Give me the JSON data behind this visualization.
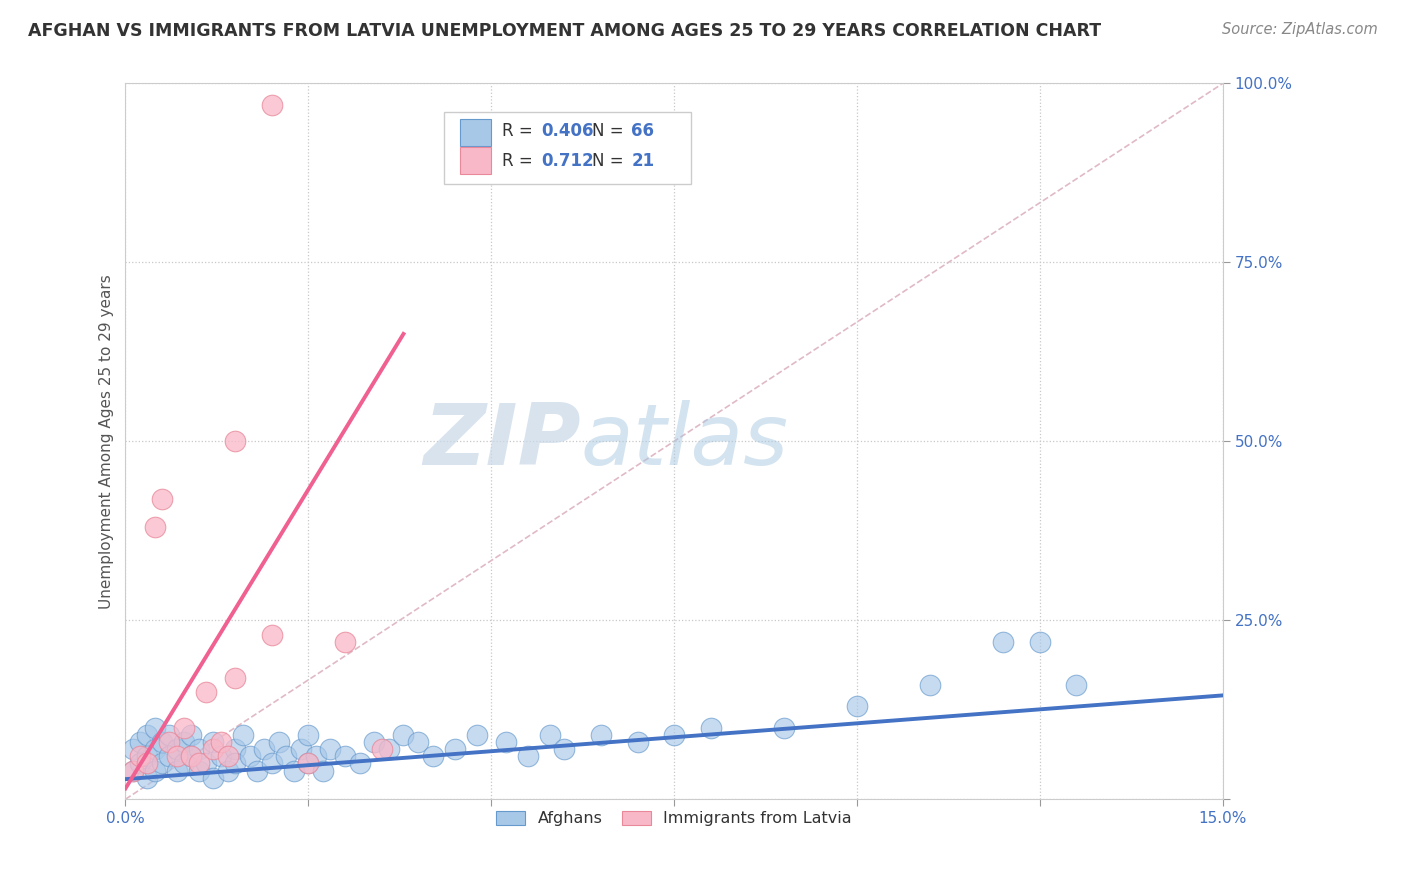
{
  "title": "AFGHAN VS IMMIGRANTS FROM LATVIA UNEMPLOYMENT AMONG AGES 25 TO 29 YEARS CORRELATION CHART",
  "source": "Source: ZipAtlas.com",
  "ylabel": "Unemployment Among Ages 25 to 29 years",
  "watermark_zip": "ZIP",
  "watermark_atlas": "atlas",
  "xlim": [
    0.0,
    0.15
  ],
  "ylim": [
    0.0,
    1.0
  ],
  "afghan_color": "#a8c8e8",
  "afghan_edge": "#6699cc",
  "latvia_color": "#f9b8c8",
  "latvia_edge": "#e88899",
  "afghan_R": 0.406,
  "afghan_N": 66,
  "latvia_R": 0.712,
  "latvia_N": 21,
  "blue_color": "#4472c4",
  "pink_color": "#f06090",
  "bg_color": "#ffffff",
  "afghan_line_x": [
    0.0,
    0.15
  ],
  "afghan_line_y": [
    0.028,
    0.145
  ],
  "latvia_line_x": [
    0.0,
    0.038
  ],
  "latvia_line_y": [
    0.015,
    0.65
  ],
  "diag_line_color": "#d8a8b8",
  "afghan_scatter_x": [
    0.001,
    0.001,
    0.002,
    0.002,
    0.003,
    0.003,
    0.003,
    0.004,
    0.004,
    0.004,
    0.005,
    0.005,
    0.006,
    0.006,
    0.007,
    0.007,
    0.008,
    0.008,
    0.009,
    0.009,
    0.01,
    0.01,
    0.011,
    0.012,
    0.012,
    0.013,
    0.014,
    0.015,
    0.015,
    0.016,
    0.017,
    0.018,
    0.019,
    0.02,
    0.021,
    0.022,
    0.023,
    0.024,
    0.025,
    0.025,
    0.026,
    0.027,
    0.028,
    0.03,
    0.032,
    0.034,
    0.036,
    0.038,
    0.04,
    0.042,
    0.045,
    0.048,
    0.052,
    0.055,
    0.058,
    0.06,
    0.065,
    0.07,
    0.075,
    0.08,
    0.09,
    0.1,
    0.11,
    0.12,
    0.125,
    0.13
  ],
  "afghan_scatter_y": [
    0.04,
    0.07,
    0.05,
    0.08,
    0.03,
    0.06,
    0.09,
    0.04,
    0.07,
    0.1,
    0.05,
    0.08,
    0.06,
    0.09,
    0.04,
    0.07,
    0.05,
    0.08,
    0.06,
    0.09,
    0.04,
    0.07,
    0.05,
    0.03,
    0.08,
    0.06,
    0.04,
    0.07,
    0.05,
    0.09,
    0.06,
    0.04,
    0.07,
    0.05,
    0.08,
    0.06,
    0.04,
    0.07,
    0.05,
    0.09,
    0.06,
    0.04,
    0.07,
    0.06,
    0.05,
    0.08,
    0.07,
    0.09,
    0.08,
    0.06,
    0.07,
    0.09,
    0.08,
    0.06,
    0.09,
    0.07,
    0.09,
    0.08,
    0.09,
    0.1,
    0.1,
    0.13,
    0.16,
    0.22,
    0.22,
    0.16
  ],
  "latvia_scatter_x": [
    0.001,
    0.002,
    0.003,
    0.004,
    0.005,
    0.006,
    0.007,
    0.008,
    0.009,
    0.01,
    0.011,
    0.012,
    0.013,
    0.014,
    0.015,
    0.02,
    0.025,
    0.03,
    0.035,
    0.015,
    0.02
  ],
  "latvia_scatter_y": [
    0.04,
    0.06,
    0.05,
    0.38,
    0.42,
    0.08,
    0.06,
    0.1,
    0.06,
    0.05,
    0.15,
    0.07,
    0.08,
    0.06,
    0.17,
    0.23,
    0.05,
    0.22,
    0.07,
    0.5,
    0.97
  ]
}
